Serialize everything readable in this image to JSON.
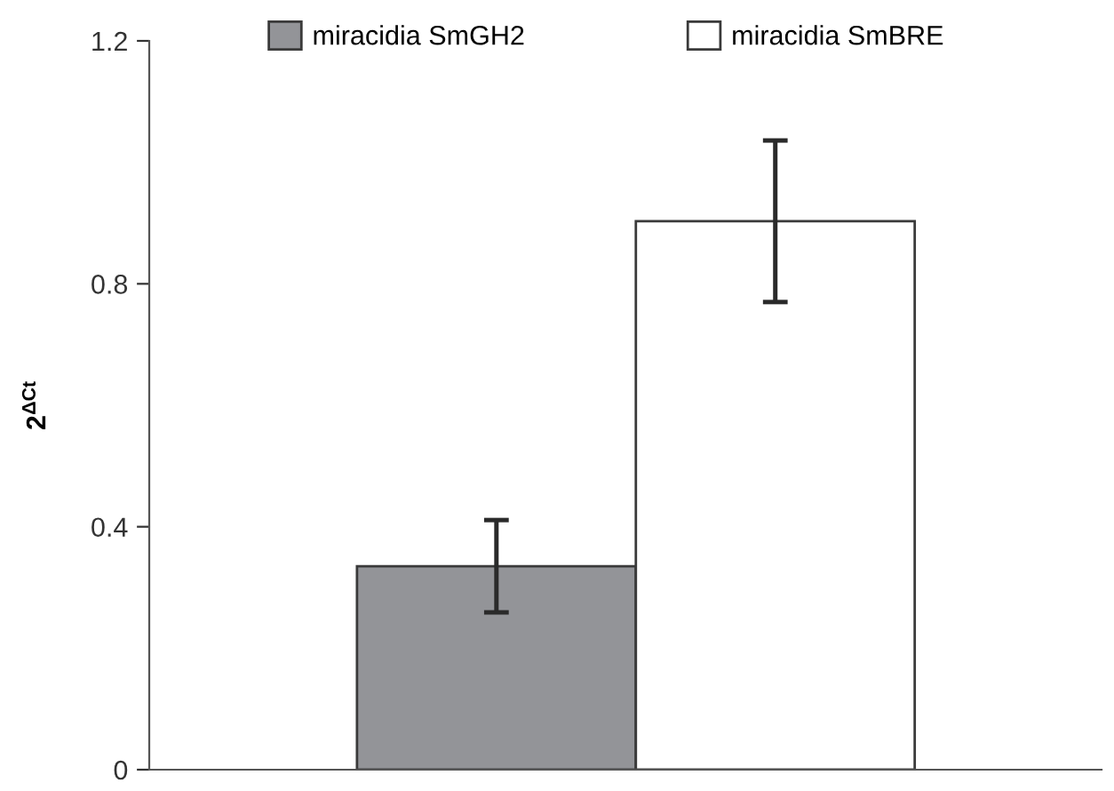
{
  "chart_data": {
    "type": "bar",
    "categories": [
      null
    ],
    "ylabel": "2$^{ΔCt}$",
    "ylim": [
      0,
      1.2
    ],
    "yticks": [
      0,
      0.4,
      0.8,
      1.2
    ],
    "grid": false,
    "legend": "top",
    "series": [
      {
        "name": "miracidia SmGH2",
        "color": "#939498",
        "values": [
          0.335
        ],
        "errors": [
          0.076
        ]
      },
      {
        "name": "miracidia SmBRE",
        "color": "#ffffff",
        "values": [
          0.903
        ],
        "errors": [
          0.133
        ]
      }
    ]
  }
}
